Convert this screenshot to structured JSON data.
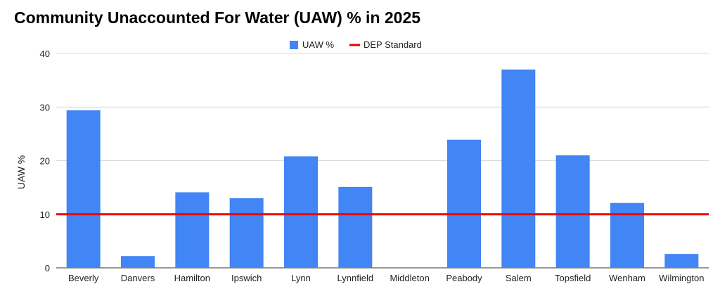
{
  "chart_data": {
    "type": "bar",
    "title": "Community Unaccounted For Water (UAW) % in 2025",
    "ylabel": "UAW %",
    "xlabel": "",
    "ylim": [
      0,
      40
    ],
    "yticks": [
      "0",
      "10",
      "20",
      "30",
      "40"
    ],
    "categories": [
      "Beverly",
      "Danvers",
      "Hamilton",
      "Ipswich",
      "Lynn",
      "Lynnfield",
      "Middleton",
      "Peabody",
      "Salem",
      "Topsfield",
      "Wenham",
      "Wilmington"
    ],
    "series": [
      {
        "name": "UAW %",
        "values": [
          29.4,
          2.2,
          14.1,
          13.0,
          20.8,
          15.1,
          0,
          23.9,
          37.0,
          21.0,
          12.1,
          2.6
        ],
        "color": "#4285f4"
      }
    ],
    "reference_line": {
      "name": "DEP Standard",
      "value": 10,
      "color": "#ee0000"
    },
    "grid": true,
    "legend": "top-center"
  }
}
